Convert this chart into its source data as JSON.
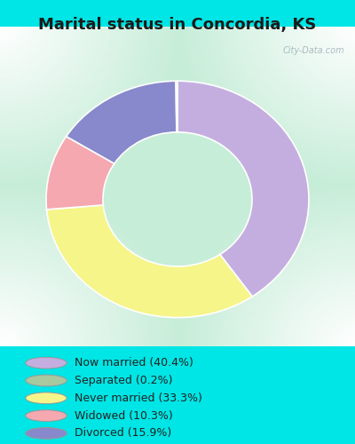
{
  "title": "Marital status in Concordia, KS",
  "values": [
    40.4,
    33.3,
    10.3,
    15.9,
    0.2
  ],
  "colors": [
    "#c4aee0",
    "#f5f58a",
    "#f5a8b0",
    "#8888cc",
    "#a8c8a0"
  ],
  "legend_labels": [
    "Now married (40.4%)",
    "Separated (0.2%)",
    "Never married (33.3%)",
    "Widowed (10.3%)",
    "Divorced (15.9%)"
  ],
  "legend_colors": [
    "#c4aee0",
    "#a8c8a0",
    "#f5f58a",
    "#f5a8b0",
    "#8888cc"
  ],
  "background_cyan": "#00e5e5",
  "chart_bg_colors": [
    "#e8f5e8",
    "#f0f8f0",
    "#ffffff"
  ],
  "title_fontsize": 13,
  "watermark": "City-Data.com"
}
